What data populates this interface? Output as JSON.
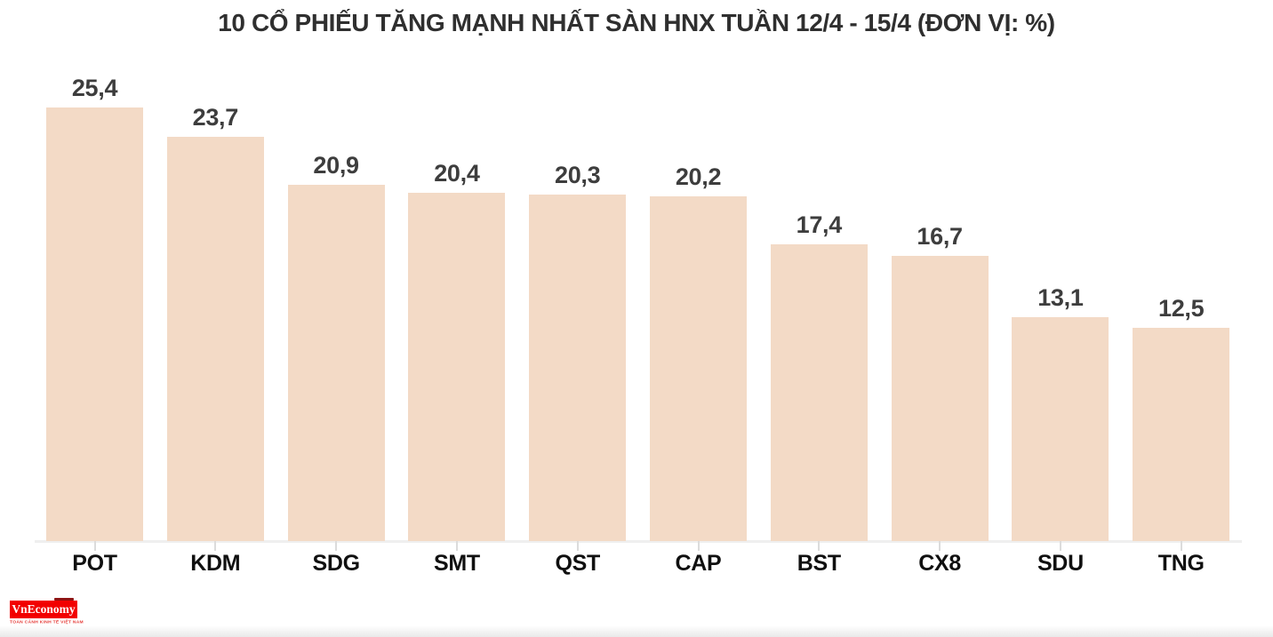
{
  "title": "10 CỔ PHIẾU TĂNG MẠNH NHẤT SÀN HNX TUẦN 12/4 - 15/4 (ĐƠN VỊ: %)",
  "chart_data": {
    "type": "bar",
    "title": "10 CỔ PHIẾU TĂNG MẠNH NHẤT SÀN HNX TUẦN 12/4 - 15/4 (ĐƠN VỊ: %)",
    "unit": "%",
    "categories": [
      "POT",
      "KDM",
      "SDG",
      "SMT",
      "QST",
      "CAP",
      "BST",
      "CX8",
      "SDU",
      "TNG"
    ],
    "values": [
      25.4,
      23.7,
      20.9,
      20.4,
      20.3,
      20.2,
      17.4,
      16.7,
      13.1,
      12.5
    ],
    "value_labels": [
      "25,4",
      "23,7",
      "20,9",
      "20,4",
      "20,3",
      "20,2",
      "17,4",
      "16,7",
      "13,1",
      "12,5"
    ],
    "xlabel": "",
    "ylabel": "",
    "ylim": [
      0,
      26
    ],
    "grid": false,
    "legend": false,
    "bar_color": "#f3dac6",
    "value_label_color": "#3d3d3d",
    "category_label_color": "#101010",
    "axis_color": "#efefef"
  },
  "logo": {
    "text": "VnEconomy",
    "tagline": "TOÀN CẢNH KINH TẾ VIỆT NAM",
    "bg_color": "#f20000",
    "text_color": "#ffffff"
  }
}
